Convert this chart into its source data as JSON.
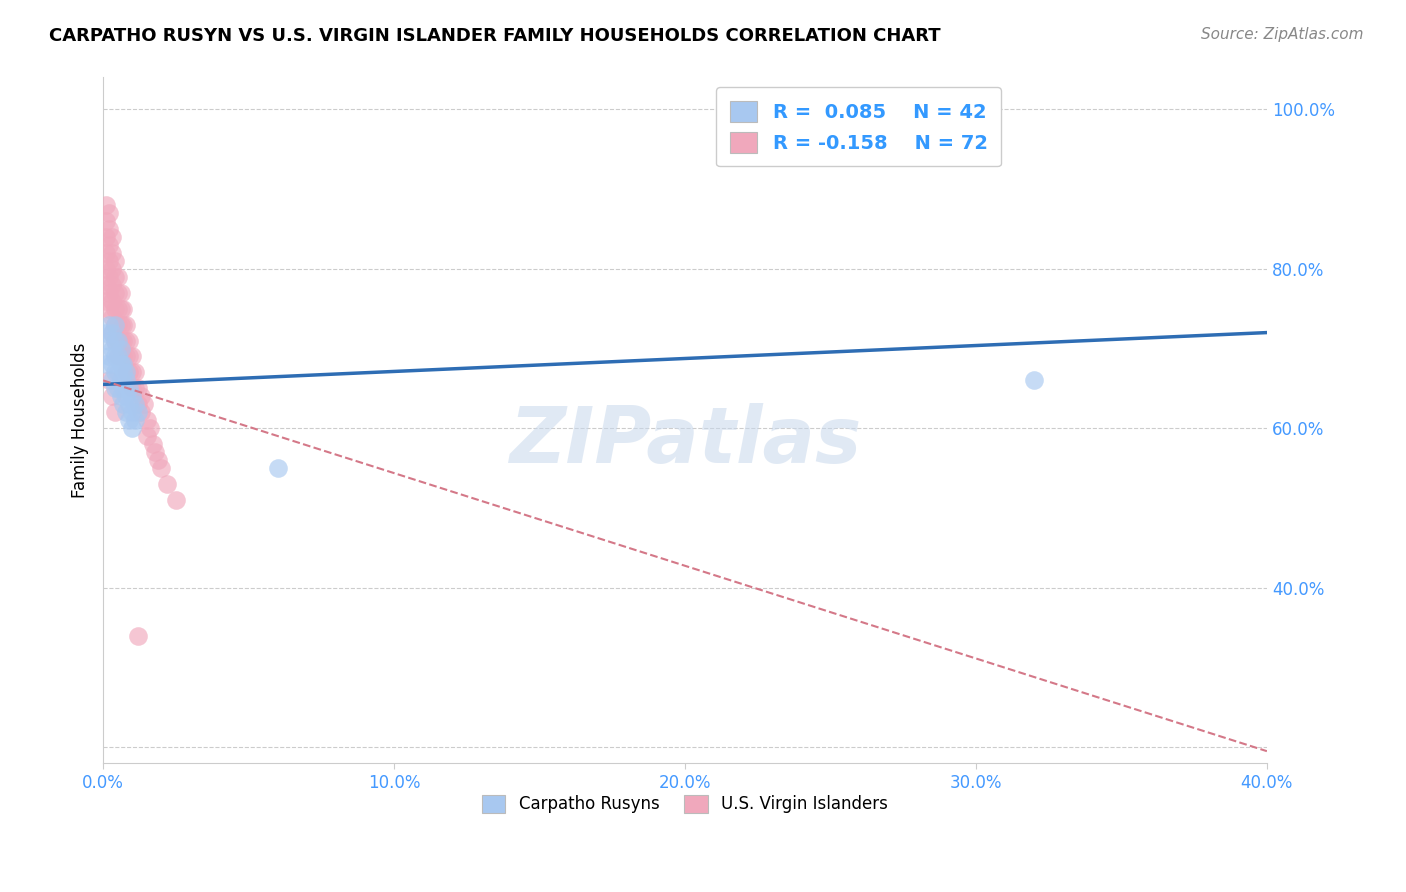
{
  "title": "CARPATHO RUSYN VS U.S. VIRGIN ISLANDER FAMILY HOUSEHOLDS CORRELATION CHART",
  "source": "Source: ZipAtlas.com",
  "ylabel": "Family Households",
  "xlim": [
    0.0,
    0.4
  ],
  "ylim": [
    0.18,
    1.04
  ],
  "yticks": [
    0.2,
    0.4,
    0.6,
    0.8,
    1.0
  ],
  "xticks": [
    0.0,
    0.1,
    0.2,
    0.3,
    0.4
  ],
  "blue_R": 0.085,
  "blue_N": 42,
  "pink_R": -0.158,
  "pink_N": 72,
  "blue_color": "#A8C8F0",
  "pink_color": "#F0A8BC",
  "trend_blue_color": "#2E6DB4",
  "trend_pink_color": "#D47888",
  "watermark": "ZIPatlas",
  "blue_x": [
    0.001,
    0.001,
    0.002,
    0.002,
    0.002,
    0.003,
    0.003,
    0.003,
    0.003,
    0.004,
    0.004,
    0.004,
    0.004,
    0.004,
    0.005,
    0.005,
    0.005,
    0.005,
    0.006,
    0.006,
    0.006,
    0.006,
    0.006,
    0.007,
    0.007,
    0.007,
    0.007,
    0.008,
    0.008,
    0.008,
    0.008,
    0.009,
    0.009,
    0.009,
    0.01,
    0.01,
    0.01,
    0.011,
    0.011,
    0.012,
    0.06,
    0.32
  ],
  "blue_y": [
    0.72,
    0.68,
    0.71,
    0.73,
    0.69,
    0.72,
    0.7,
    0.68,
    0.66,
    0.73,
    0.71,
    0.69,
    0.67,
    0.65,
    0.71,
    0.69,
    0.67,
    0.65,
    0.7,
    0.68,
    0.66,
    0.64,
    0.68,
    0.67,
    0.65,
    0.63,
    0.68,
    0.66,
    0.64,
    0.62,
    0.67,
    0.65,
    0.63,
    0.61,
    0.64,
    0.62,
    0.6,
    0.63,
    0.61,
    0.62,
    0.55,
    0.66
  ],
  "pink_x": [
    0.001,
    0.001,
    0.001,
    0.001,
    0.001,
    0.001,
    0.002,
    0.002,
    0.002,
    0.002,
    0.002,
    0.002,
    0.002,
    0.003,
    0.003,
    0.003,
    0.003,
    0.003,
    0.003,
    0.003,
    0.004,
    0.004,
    0.004,
    0.004,
    0.004,
    0.004,
    0.005,
    0.005,
    0.005,
    0.005,
    0.005,
    0.005,
    0.006,
    0.006,
    0.006,
    0.006,
    0.006,
    0.007,
    0.007,
    0.007,
    0.007,
    0.008,
    0.008,
    0.008,
    0.008,
    0.009,
    0.009,
    0.009,
    0.01,
    0.01,
    0.01,
    0.011,
    0.011,
    0.012,
    0.012,
    0.013,
    0.013,
    0.014,
    0.015,
    0.015,
    0.016,
    0.017,
    0.018,
    0.019,
    0.02,
    0.022,
    0.025,
    0.001,
    0.002,
    0.003,
    0.004,
    0.012
  ],
  "pink_y": [
    0.86,
    0.84,
    0.82,
    0.88,
    0.8,
    0.78,
    0.87,
    0.85,
    0.83,
    0.81,
    0.79,
    0.77,
    0.75,
    0.84,
    0.82,
    0.8,
    0.78,
    0.76,
    0.74,
    0.72,
    0.81,
    0.79,
    0.77,
    0.75,
    0.73,
    0.71,
    0.79,
    0.77,
    0.75,
    0.73,
    0.71,
    0.69,
    0.77,
    0.75,
    0.73,
    0.71,
    0.69,
    0.75,
    0.73,
    0.71,
    0.69,
    0.73,
    0.71,
    0.69,
    0.67,
    0.71,
    0.69,
    0.67,
    0.69,
    0.67,
    0.65,
    0.67,
    0.65,
    0.65,
    0.63,
    0.64,
    0.62,
    0.63,
    0.61,
    0.59,
    0.6,
    0.58,
    0.57,
    0.56,
    0.55,
    0.53,
    0.51,
    0.76,
    0.66,
    0.64,
    0.62,
    0.34
  ],
  "blue_trend_x": [
    0.0,
    0.4
  ],
  "blue_trend_y": [
    0.655,
    0.72
  ],
  "pink_trend_x": [
    0.0,
    0.4
  ],
  "pink_trend_y": [
    0.66,
    0.195
  ]
}
